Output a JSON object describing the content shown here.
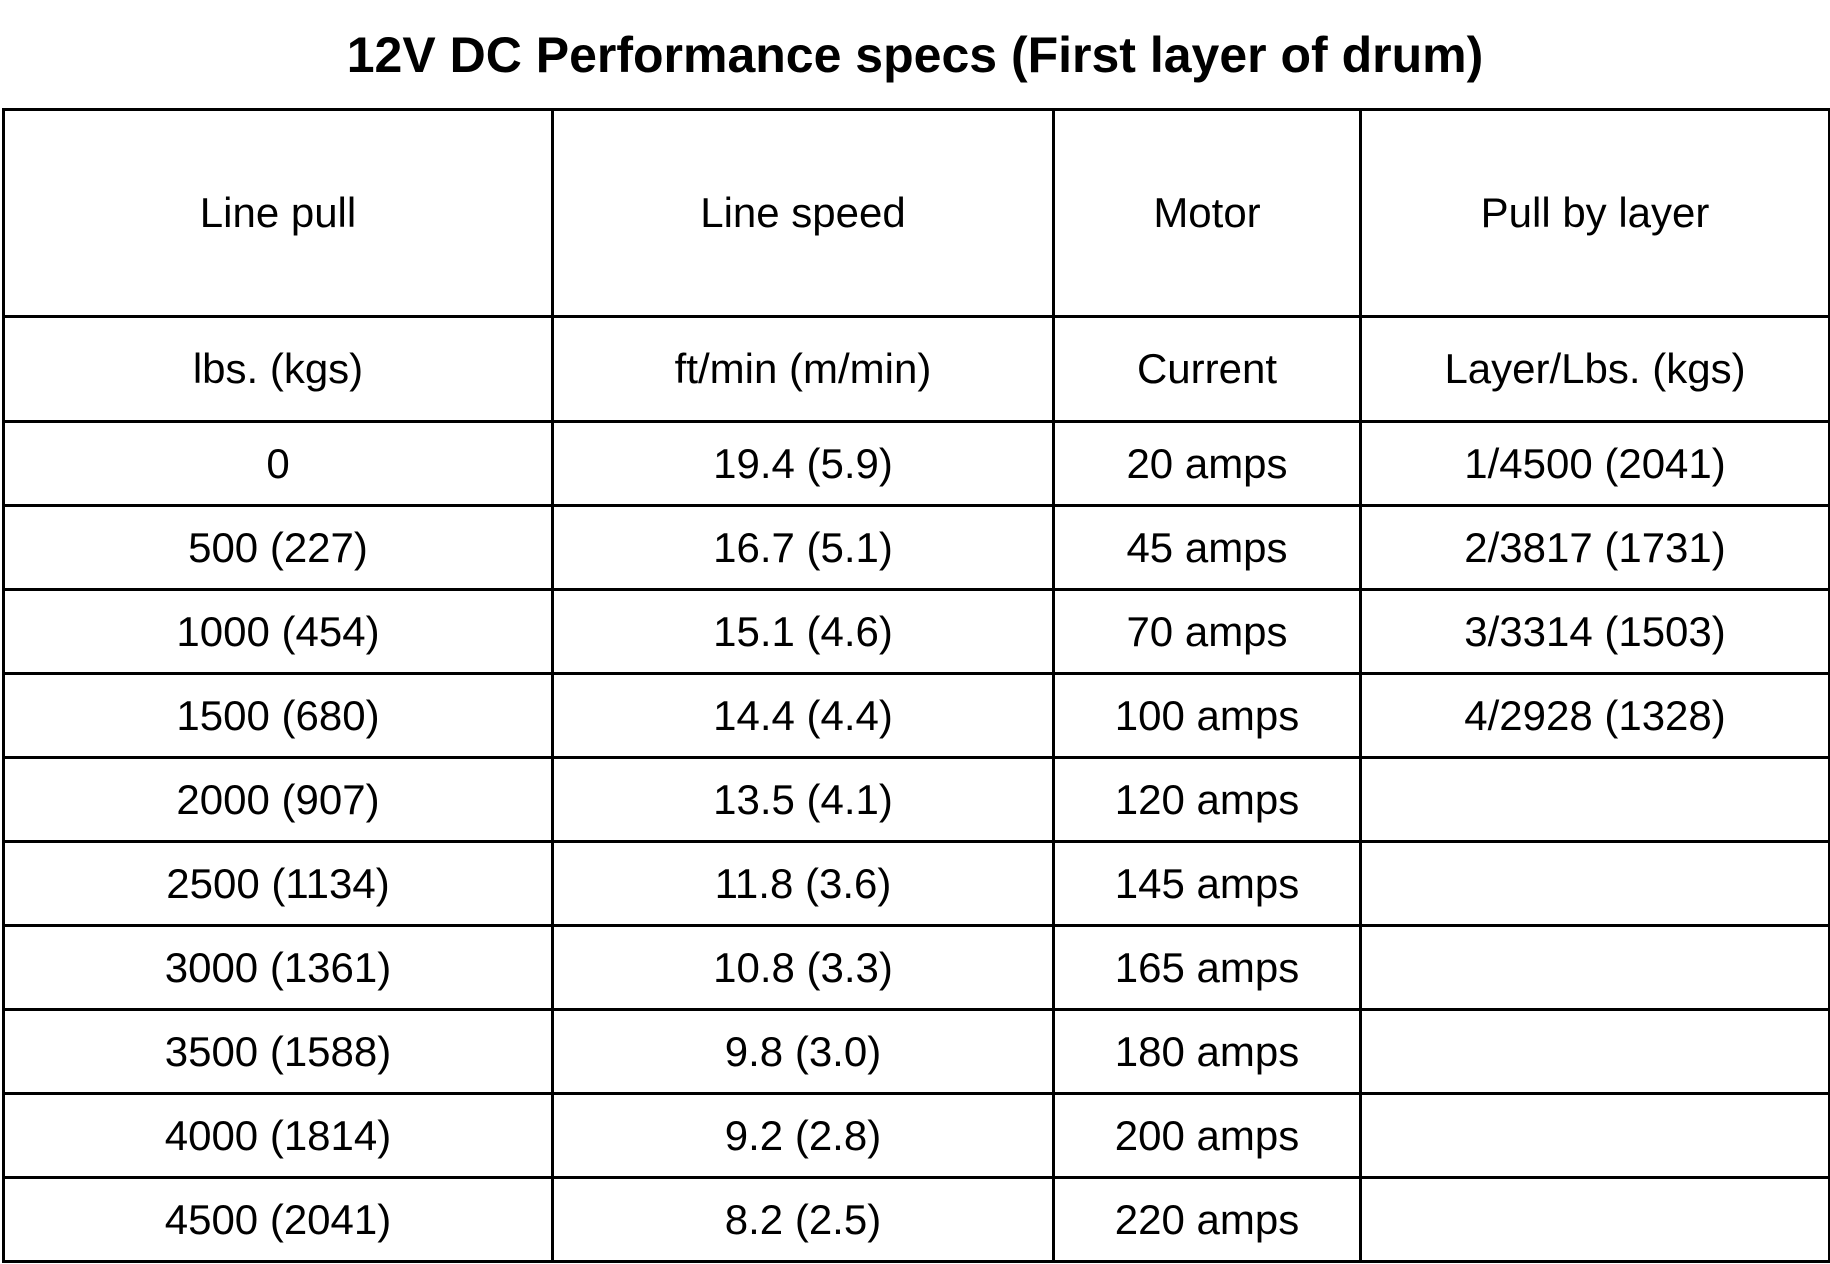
{
  "title": "12V DC Performance specs (First layer of drum)",
  "table": {
    "headers": [
      "Line pull",
      "Line speed",
      "Motor",
      "Pull by layer"
    ],
    "units": [
      "lbs. (kgs)",
      "ft/min (m/min)",
      "Current",
      "Layer/Lbs. (kgs)"
    ],
    "rows": [
      [
        "0",
        "19.4 (5.9)",
        "20 amps",
        "1/4500 (2041)"
      ],
      [
        "500 (227)",
        "16.7 (5.1)",
        "45 amps",
        "2/3817 (1731)"
      ],
      [
        "1000 (454)",
        "15.1 (4.6)",
        "70 amps",
        "3/3314 (1503)"
      ],
      [
        "1500 (680)",
        "14.4 (4.4)",
        "100 amps",
        "4/2928 (1328)"
      ],
      [
        "2000 (907)",
        "13.5 (4.1)",
        "120 amps",
        ""
      ],
      [
        "2500 (1134)",
        "11.8 (3.6)",
        "145 amps",
        ""
      ],
      [
        "3000 (1361)",
        "10.8 (3.3)",
        "165 amps",
        ""
      ],
      [
        "3500 (1588)",
        "9.8 (3.0)",
        "180 amps",
        ""
      ],
      [
        "4000 (1814)",
        "9.2 (2.8)",
        "200 amps",
        ""
      ],
      [
        "4500 (2041)",
        "8.2 (2.5)",
        "220 amps",
        ""
      ]
    ]
  }
}
